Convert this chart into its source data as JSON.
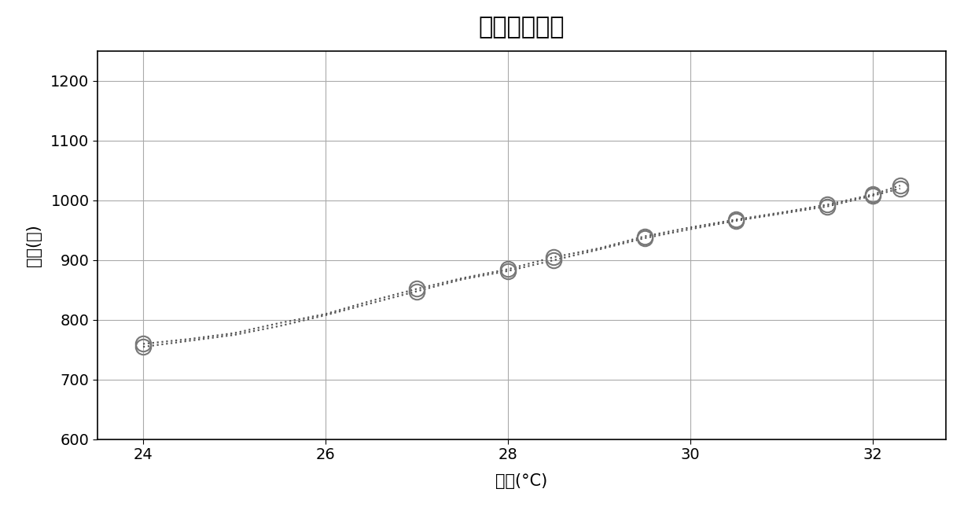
{
  "title": "内压力对温度",
  "xlabel": "温度(°C)",
  "ylabel": "压力(托)",
  "xlim": [
    23.5,
    32.8
  ],
  "ylim": [
    600,
    1250
  ],
  "xticks": [
    24,
    26,
    28,
    30,
    32
  ],
  "yticks": [
    600,
    700,
    800,
    900,
    1000,
    1100,
    1200
  ],
  "series1_x": [
    24.0,
    24.5,
    25.0,
    25.5,
    26.0,
    26.5,
    27.0,
    27.5,
    28.0,
    28.5,
    29.0,
    29.5,
    30.0,
    30.5,
    31.0,
    31.5,
    32.0,
    32.3
  ],
  "series1_y": [
    760,
    768,
    778,
    795,
    810,
    832,
    852,
    870,
    885,
    905,
    920,
    940,
    955,
    968,
    980,
    993,
    1010,
    1025
  ],
  "series2_x": [
    24.0,
    24.5,
    25.0,
    25.5,
    26.0,
    26.5,
    27.0,
    27.5,
    28.0,
    28.5,
    29.0,
    29.5,
    30.0,
    30.5,
    31.0,
    31.5,
    32.0,
    32.3
  ],
  "series2_y": [
    755,
    765,
    775,
    790,
    808,
    828,
    848,
    868,
    882,
    900,
    918,
    937,
    952,
    966,
    978,
    990,
    1008,
    1020
  ],
  "marker_positions_x": [
    24.0,
    27.0,
    28.0,
    28.5,
    29.5,
    30.5,
    31.5,
    32.0,
    32.3
  ],
  "marker1_y": [
    760,
    852,
    885,
    905,
    940,
    968,
    993,
    1010,
    1025
  ],
  "marker2_y": [
    755,
    848,
    882,
    900,
    937,
    966,
    990,
    1008,
    1020
  ],
  "line_color": "#555555",
  "marker_color": "#777777",
  "grid_color": "#aaaaaa",
  "background_color": "#ffffff",
  "title_fontsize": 22,
  "label_fontsize": 15,
  "tick_fontsize": 14,
  "marker_size": 14,
  "line_width": 1.6
}
